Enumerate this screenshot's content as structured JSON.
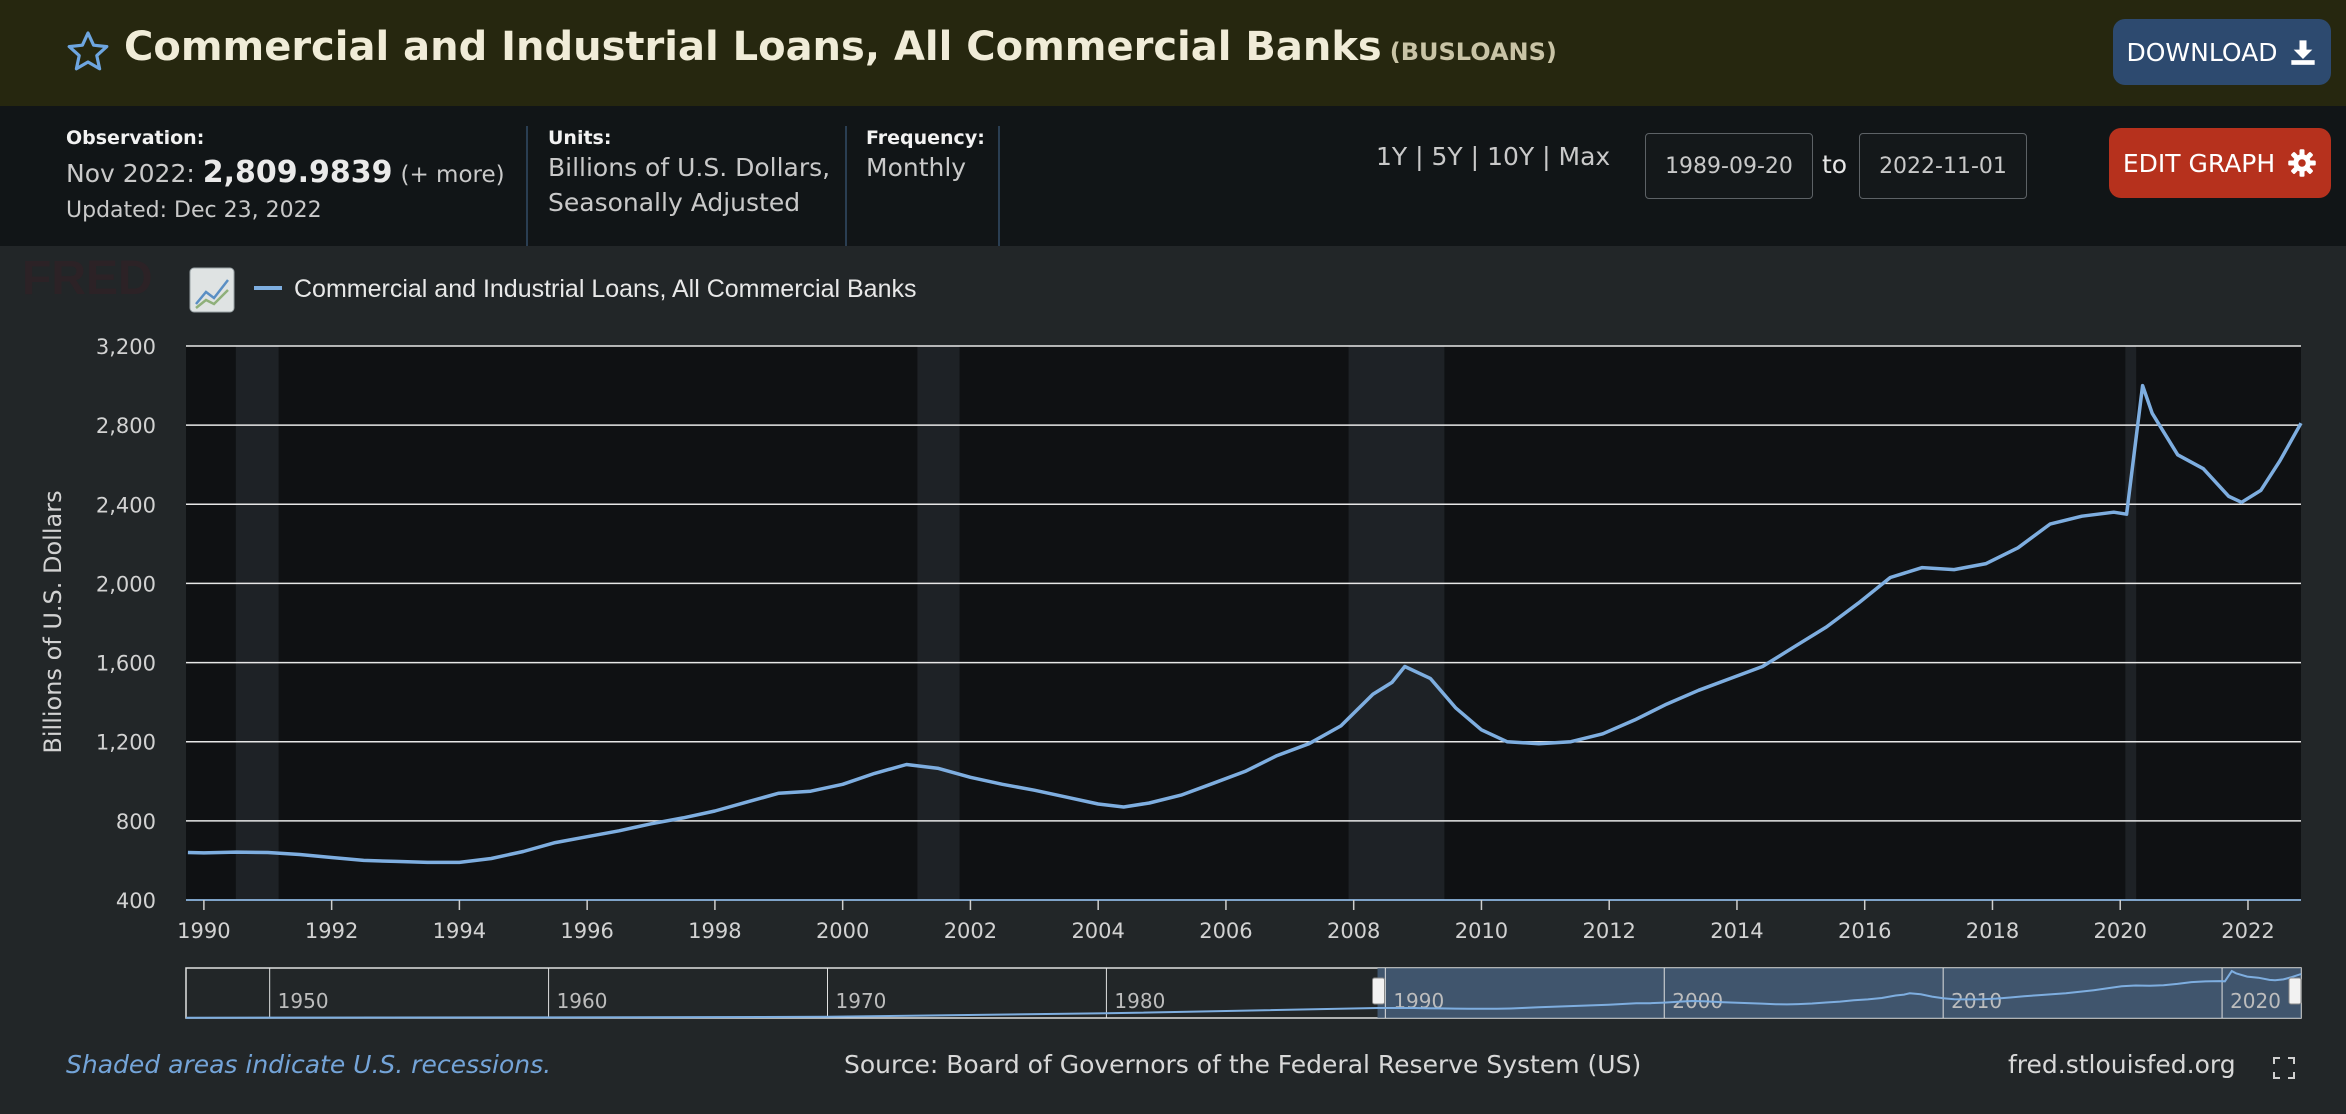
{
  "header": {
    "title": "Commercial and Industrial Loans, All Commercial Banks",
    "series_id": "(BUSLOANS)",
    "download_label": "DOWNLOAD"
  },
  "meta": {
    "observation_label": "Observation:",
    "observation_date": "Nov 2022:",
    "observation_value": "2,809.9839",
    "observation_more": "(+ more)",
    "updated": "Updated: Dec 23, 2022",
    "units_label": "Units:",
    "units_line1": "Billions of U.S. Dollars,",
    "units_line2": "Seasonally Adjusted",
    "frequency_label": "Frequency:",
    "frequency_value": "Monthly"
  },
  "controls": {
    "range_1y": "1Y",
    "range_5y": "5Y",
    "range_10y": "10Y",
    "range_max": "Max",
    "separator": "|",
    "start_date": "1989-09-20",
    "to_label": "to",
    "end_date": "2022-11-01",
    "edit_label": "EDIT GRAPH"
  },
  "colors": {
    "series": "#7eaee0",
    "recession": "#1e2226",
    "edit_button": "#b6311d",
    "download_button": "#2d4a6f"
  },
  "icons": {
    "favorite": "star-icon",
    "download": "download-icon",
    "edit": "gear-icon",
    "chart_type": "line-chart-icon",
    "fullscreen": "fullscreen-icon"
  },
  "chart_data": {
    "type": "line",
    "logo_text": "FRED",
    "legend": [
      "Commercial and Industrial Loans, All Commercial Banks"
    ],
    "legend_position": "top-left",
    "ylabel": "Billions of U.S. Dollars",
    "ylim": [
      400,
      3200
    ],
    "yticks": [
      400,
      800,
      1200,
      1600,
      2000,
      2400,
      2800,
      3200
    ],
    "ytick_labels": [
      "400",
      "800",
      "1,200",
      "1,600",
      "2,000",
      "2,400",
      "2,800",
      "3,200"
    ],
    "xlim": [
      1989.72,
      2022.83
    ],
    "xticks": [
      1990,
      1992,
      1994,
      1996,
      1998,
      2000,
      2002,
      2004,
      2006,
      2008,
      2010,
      2012,
      2014,
      2016,
      2018,
      2020,
      2022
    ],
    "grid": true,
    "recessions": [
      [
        1990.5,
        1991.17
      ],
      [
        2001.17,
        2001.83
      ],
      [
        2007.92,
        2009.42
      ],
      [
        2020.08,
        2020.25
      ]
    ],
    "series": [
      {
        "name": "Commercial and Industrial Loans, All Commercial Banks",
        "points": [
          [
            1989.75,
            640
          ],
          [
            1990.0,
            638
          ],
          [
            1990.5,
            642
          ],
          [
            1991.0,
            640
          ],
          [
            1991.5,
            630
          ],
          [
            1992.0,
            615
          ],
          [
            1992.5,
            600
          ],
          [
            1993.0,
            595
          ],
          [
            1993.5,
            590
          ],
          [
            1994.0,
            590
          ],
          [
            1994.5,
            610
          ],
          [
            1995.0,
            645
          ],
          [
            1995.5,
            690
          ],
          [
            1996.0,
            720
          ],
          [
            1996.5,
            750
          ],
          [
            1997.0,
            785
          ],
          [
            1997.5,
            815
          ],
          [
            1998.0,
            850
          ],
          [
            1998.5,
            895
          ],
          [
            1999.0,
            940
          ],
          [
            1999.5,
            950
          ],
          [
            2000.0,
            985
          ],
          [
            2000.5,
            1040
          ],
          [
            2001.0,
            1085
          ],
          [
            2001.5,
            1065
          ],
          [
            2002.0,
            1020
          ],
          [
            2002.5,
            985
          ],
          [
            2003.0,
            955
          ],
          [
            2003.5,
            920
          ],
          [
            2004.0,
            885
          ],
          [
            2004.4,
            870
          ],
          [
            2004.8,
            890
          ],
          [
            2005.3,
            930
          ],
          [
            2005.8,
            990
          ],
          [
            2006.3,
            1050
          ],
          [
            2006.8,
            1130
          ],
          [
            2007.3,
            1190
          ],
          [
            2007.8,
            1280
          ],
          [
            2008.3,
            1440
          ],
          [
            2008.6,
            1500
          ],
          [
            2008.8,
            1580
          ],
          [
            2009.2,
            1520
          ],
          [
            2009.6,
            1370
          ],
          [
            2010.0,
            1260
          ],
          [
            2010.4,
            1200
          ],
          [
            2010.9,
            1190
          ],
          [
            2011.4,
            1200
          ],
          [
            2011.9,
            1240
          ],
          [
            2012.4,
            1310
          ],
          [
            2012.9,
            1390
          ],
          [
            2013.4,
            1460
          ],
          [
            2013.9,
            1520
          ],
          [
            2014.4,
            1580
          ],
          [
            2014.9,
            1680
          ],
          [
            2015.4,
            1780
          ],
          [
            2015.9,
            1900
          ],
          [
            2016.4,
            2030
          ],
          [
            2016.9,
            2080
          ],
          [
            2017.4,
            2070
          ],
          [
            2017.9,
            2100
          ],
          [
            2018.4,
            2180
          ],
          [
            2018.9,
            2300
          ],
          [
            2019.4,
            2340
          ],
          [
            2019.9,
            2360
          ],
          [
            2020.1,
            2350
          ],
          [
            2020.35,
            3000
          ],
          [
            2020.5,
            2860
          ],
          [
            2020.9,
            2650
          ],
          [
            2021.3,
            2580
          ],
          [
            2021.7,
            2440
          ],
          [
            2021.9,
            2410
          ],
          [
            2022.2,
            2470
          ],
          [
            2022.5,
            2620
          ],
          [
            2022.83,
            2810
          ]
        ]
      }
    ],
    "navigator": {
      "tick_labels": [
        "1950",
        "1960",
        "1970",
        "1980",
        "1990",
        "2000",
        "2010",
        "2020"
      ],
      "range": [
        1947,
        2022.83
      ],
      "selection": [
        1989.72,
        2022.83
      ]
    },
    "footer_note": "Shaded areas indicate U.S. recessions.",
    "source": "Source: Board of Governors of the Federal Reserve System (US)",
    "site": "fred.stlouisfed.org"
  }
}
